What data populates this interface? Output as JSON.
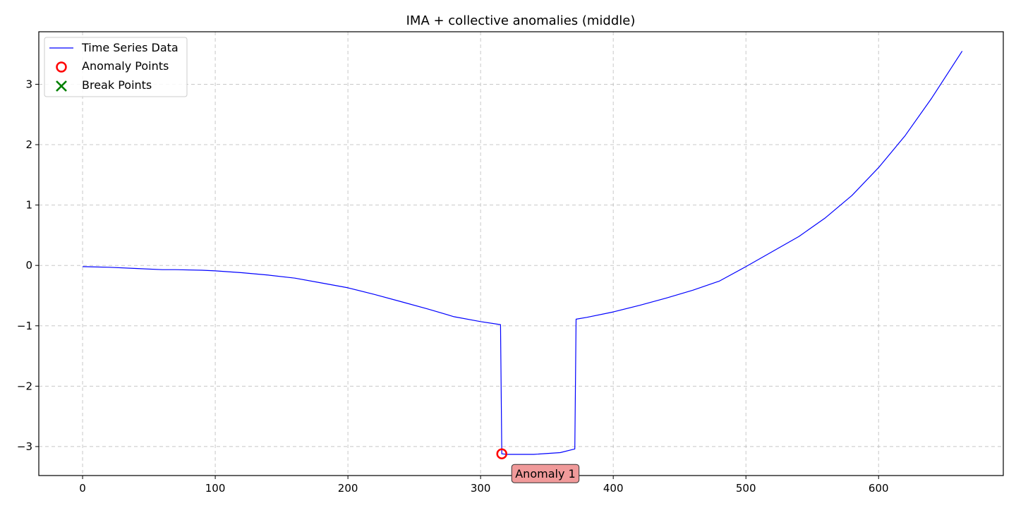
{
  "chart_data": {
    "type": "line",
    "title": "IMA + collective anomalies (middle)",
    "xlabel": "",
    "ylabel": "",
    "xlim": [
      -33,
      694
    ],
    "ylim": [
      -3.48,
      3.87
    ],
    "xticks": [
      0,
      100,
      200,
      300,
      400,
      500,
      600
    ],
    "yticks": [
      -3,
      -2,
      -1,
      0,
      1,
      2,
      3
    ],
    "grid": true,
    "legend": "top-left",
    "colors": {
      "series": "#0000ff",
      "anomaly": "#ff0000",
      "break": "#008000",
      "annotation_fill": "#f09a9a"
    },
    "series": [
      {
        "name": "Time Series Data",
        "x": [
          0,
          20,
          40,
          60,
          70,
          90,
          100,
          120,
          140,
          160,
          180,
          200,
          220,
          240,
          260,
          280,
          300,
          315,
          316,
          320,
          340,
          360,
          371,
          372,
          380,
          400,
          420,
          440,
          460,
          480,
          500,
          520,
          540,
          560,
          580,
          600,
          620,
          640,
          663
        ],
        "y": [
          -0.02,
          -0.03,
          -0.05,
          -0.07,
          -0.07,
          -0.08,
          -0.09,
          -0.12,
          -0.16,
          -0.21,
          -0.29,
          -0.37,
          -0.48,
          -0.6,
          -0.72,
          -0.85,
          -0.93,
          -0.98,
          -3.12,
          -3.13,
          -3.13,
          -3.1,
          -3.04,
          -0.89,
          -0.86,
          -0.77,
          -0.66,
          -0.54,
          -0.41,
          -0.26,
          -0.02,
          0.23,
          0.48,
          0.79,
          1.16,
          1.62,
          2.15,
          2.77,
          3.55
        ]
      }
    ],
    "anomaly_points": {
      "name": "Anomaly Points",
      "points": [
        {
          "x": 316,
          "y": -3.12
        }
      ]
    },
    "break_points": {
      "name": "Break Points",
      "points": []
    },
    "annotations": [
      {
        "text": "Anomaly 1",
        "x": 316,
        "y": -3.12
      }
    ]
  }
}
